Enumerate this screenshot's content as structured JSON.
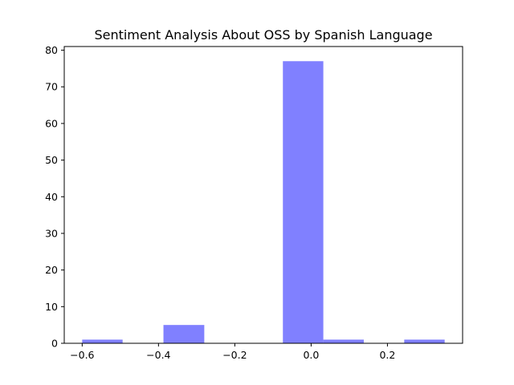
{
  "chart_data": {
    "type": "bar",
    "title": "Sentiment Analysis About OSS by Spanish Language",
    "xlabel": "",
    "ylabel": "",
    "xlim": [
      -0.647,
      0.397
    ],
    "ylim": [
      0,
      81
    ],
    "grid": false,
    "bar_color": "#8080ff",
    "bins": [
      {
        "x0": -0.6,
        "x1": -0.494,
        "value": 1
      },
      {
        "x0": -0.387,
        "x1": -0.28,
        "value": 5
      },
      {
        "x0": -0.074,
        "x1": 0.032,
        "value": 77
      },
      {
        "x0": 0.032,
        "x1": 0.138,
        "value": 1
      },
      {
        "x0": 0.244,
        "x1": 0.35,
        "value": 1
      }
    ],
    "x_ticks": [
      {
        "value": -0.6,
        "label": "−0.6"
      },
      {
        "value": -0.4,
        "label": "−0.4"
      },
      {
        "value": -0.2,
        "label": "−0.2"
      },
      {
        "value": 0.0,
        "label": "0.0"
      },
      {
        "value": 0.2,
        "label": "0.2"
      }
    ],
    "y_ticks": [
      {
        "value": 0,
        "label": "0"
      },
      {
        "value": 10,
        "label": "10"
      },
      {
        "value": 20,
        "label": "20"
      },
      {
        "value": 30,
        "label": "30"
      },
      {
        "value": 40,
        "label": "40"
      },
      {
        "value": 50,
        "label": "50"
      },
      {
        "value": 60,
        "label": "60"
      },
      {
        "value": 70,
        "label": "70"
      },
      {
        "value": 80,
        "label": "80"
      }
    ]
  }
}
